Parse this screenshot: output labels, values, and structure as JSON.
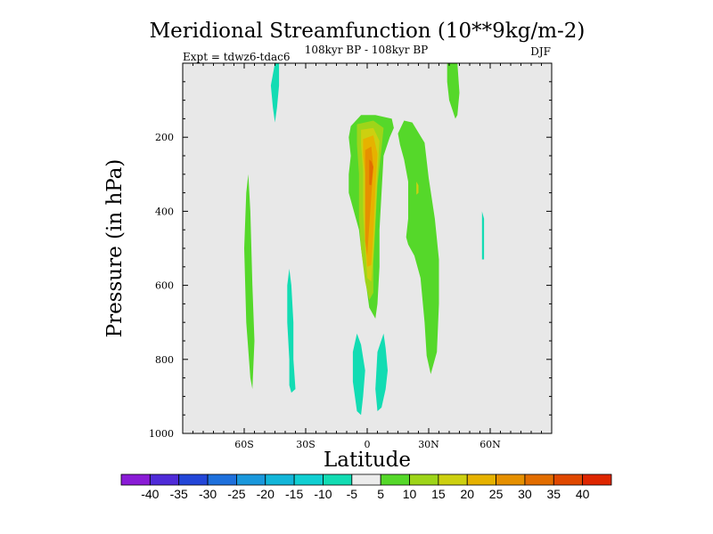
{
  "chart_data": {
    "type": "contour",
    "title": "Meridional Streamfunction (10**9kg/m-2)",
    "subtitle_center": "108kyr BP - 108kyr BP",
    "subtitle_left": "Expt = tdwz6-tdac6",
    "subtitle_right": "DJF",
    "xlabel": "Latitude",
    "ylabel": "Pressure (in hPa)",
    "xlim": [
      -90,
      90
    ],
    "ylim": [
      0,
      1000
    ],
    "x_ticks": [
      {
        "value": -60,
        "label": "60S"
      },
      {
        "value": -30,
        "label": "30S"
      },
      {
        "value": 0,
        "label": "0"
      },
      {
        "value": 30,
        "label": "30N"
      },
      {
        "value": 60,
        "label": "60N"
      }
    ],
    "y_ticks": [
      {
        "value": 200,
        "label": "200"
      },
      {
        "value": 400,
        "label": "400"
      },
      {
        "value": 600,
        "label": "600"
      },
      {
        "value": 800,
        "label": "800"
      },
      {
        "value": 1000,
        "label": "1000"
      }
    ],
    "background_color": "#e8e8e8",
    "colorbar": {
      "colors": [
        "#8a1cd6",
        "#4f2bd8",
        "#2346d8",
        "#1e70dc",
        "#1a98dc",
        "#13b6d9",
        "#11cfd2",
        "#12dcb3",
        "#ececec",
        "#55d82a",
        "#9ed519",
        "#cdd010",
        "#e6b200",
        "#e69000",
        "#e26d00",
        "#e04800",
        "#de2600"
      ],
      "labels": [
        "-40",
        "-35",
        "-30",
        "-25",
        "-20",
        "-15",
        "-10",
        "-5",
        "5",
        "10",
        "15",
        "20",
        "25",
        "30",
        "35",
        "40"
      ]
    },
    "regions": [
      {
        "level": "-10 to -5",
        "color": "#12dcb3",
        "points": [
          [
            -45,
            0
          ],
          [
            -43,
            0
          ],
          [
            -43,
            60
          ],
          [
            -44,
            120
          ],
          [
            -45,
            160
          ],
          [
            -46,
            120
          ],
          [
            -47,
            60
          ]
        ]
      },
      {
        "level": "-10 to -5",
        "color": "#12dcb3",
        "points": [
          [
            -38,
            555
          ],
          [
            -37,
            600
          ],
          [
            -36,
            700
          ],
          [
            -36,
            800
          ],
          [
            -35,
            880
          ],
          [
            -37,
            890
          ],
          [
            -38,
            870
          ],
          [
            -38,
            800
          ],
          [
            -39,
            700
          ],
          [
            -39,
            600
          ]
        ]
      },
      {
        "level": "-10 to -5",
        "color": "#12dcb3",
        "points": [
          [
            -5,
            730
          ],
          [
            -3,
            760
          ],
          [
            -1,
            830
          ],
          [
            -2,
            900
          ],
          [
            -3,
            950
          ],
          [
            -5,
            940
          ],
          [
            -7,
            860
          ],
          [
            -7,
            780
          ]
        ]
      },
      {
        "level": "-10 to -5",
        "color": "#12dcb3",
        "points": [
          [
            8,
            730
          ],
          [
            9,
            770
          ],
          [
            10,
            830
          ],
          [
            9,
            880
          ],
          [
            7,
            930
          ],
          [
            5,
            940
          ],
          [
            4,
            880
          ],
          [
            5,
            780
          ]
        ]
      },
      {
        "level": "-10 to -5",
        "color": "#12dcb3",
        "points": [
          [
            56,
            400
          ],
          [
            57,
            420
          ],
          [
            57,
            530
          ],
          [
            56,
            530
          ],
          [
            56,
            420
          ]
        ]
      },
      {
        "level": "5 to 10",
        "color": "#55d82a",
        "points": [
          [
            -58,
            300
          ],
          [
            -57,
            400
          ],
          [
            -56,
            600
          ],
          [
            -55,
            750
          ],
          [
            -56,
            880
          ],
          [
            -57,
            850
          ],
          [
            -59,
            700
          ],
          [
            -60,
            500
          ],
          [
            -59,
            350
          ]
        ]
      },
      {
        "level": "5 to 10",
        "color": "#55d82a",
        "points": [
          [
            39,
            0
          ],
          [
            44,
            0
          ],
          [
            45,
            80
          ],
          [
            44,
            140
          ],
          [
            43,
            150
          ],
          [
            40,
            100
          ],
          [
            39,
            50
          ]
        ]
      },
      {
        "level": "5 to 10",
        "color": "#55d82a",
        "points": [
          [
            -8,
            170
          ],
          [
            -3,
            140
          ],
          [
            4,
            140
          ],
          [
            12,
            150
          ],
          [
            13,
            175
          ],
          [
            11,
            200
          ],
          [
            8,
            250
          ],
          [
            7,
            350
          ],
          [
            6,
            450
          ],
          [
            6,
            550
          ],
          [
            5,
            650
          ],
          [
            4,
            690
          ],
          [
            1,
            660
          ],
          [
            -1,
            580
          ],
          [
            -3,
            500
          ],
          [
            -4,
            450
          ],
          [
            -6,
            410
          ],
          [
            -9,
            350
          ],
          [
            -9,
            300
          ],
          [
            -8,
            250
          ],
          [
            -9,
            200
          ]
        ]
      },
      {
        "level": "5 to 10",
        "color": "#55d82a",
        "points": [
          [
            15,
            190
          ],
          [
            18,
            155
          ],
          [
            22,
            160
          ],
          [
            28,
            215
          ],
          [
            30,
            310
          ],
          [
            33,
            420
          ],
          [
            35,
            530
          ],
          [
            35,
            650
          ],
          [
            34,
            780
          ],
          [
            31,
            840
          ],
          [
            29,
            790
          ],
          [
            28,
            700
          ],
          [
            26,
            580
          ],
          [
            23,
            520
          ],
          [
            20,
            490
          ],
          [
            19,
            470
          ],
          [
            20,
            420
          ],
          [
            20,
            320
          ],
          [
            18,
            260
          ],
          [
            16,
            220
          ]
        ]
      },
      {
        "level": "10 to 15",
        "color": "#9ed519",
        "points": [
          [
            -5,
            165
          ],
          [
            3,
            155
          ],
          [
            8,
            175
          ],
          [
            7,
            230
          ],
          [
            5,
            330
          ],
          [
            4,
            440
          ],
          [
            3,
            540
          ],
          [
            3,
            620
          ],
          [
            1,
            640
          ],
          [
            -1,
            590
          ],
          [
            -3,
            500
          ],
          [
            -4,
            420
          ],
          [
            -4,
            300
          ],
          [
            -5,
            220
          ]
        ]
      },
      {
        "level": "15 to 20",
        "color": "#cdd010",
        "points": [
          [
            24,
            320
          ],
          [
            25,
            330
          ],
          [
            25,
            350
          ],
          [
            24,
            355
          ]
        ]
      },
      {
        "level": "15 to 20",
        "color": "#cdd010",
        "points": [
          [
            -3,
            180
          ],
          [
            3,
            175
          ],
          [
            6,
            210
          ],
          [
            5,
            300
          ],
          [
            4,
            420
          ],
          [
            3,
            520
          ],
          [
            2,
            590
          ],
          [
            0,
            580
          ],
          [
            -1,
            500
          ],
          [
            -2,
            400
          ],
          [
            -2,
            290
          ],
          [
            -3,
            220
          ]
        ]
      },
      {
        "level": "20 to 25",
        "color": "#e6b200",
        "points": [
          [
            -2,
            205
          ],
          [
            3,
            195
          ],
          [
            5,
            245
          ],
          [
            4,
            340
          ],
          [
            3,
            460
          ],
          [
            2,
            545
          ],
          [
            0,
            550
          ],
          [
            -1,
            470
          ],
          [
            -1,
            380
          ],
          [
            -1,
            300
          ],
          [
            -2,
            250
          ]
        ]
      },
      {
        "level": "25 to 30",
        "color": "#e69000",
        "points": [
          [
            -1,
            235
          ],
          [
            2,
            225
          ],
          [
            3,
            280
          ],
          [
            2,
            360
          ],
          [
            1,
            440
          ],
          [
            0,
            520
          ],
          [
            -1,
            480
          ],
          [
            -1,
            380
          ],
          [
            -1,
            300
          ]
        ]
      },
      {
        "level": "30 to 35",
        "color": "#e26d00",
        "points": [
          [
            1,
            260
          ],
          [
            2,
            265
          ],
          [
            3,
            280
          ],
          [
            2,
            330
          ],
          [
            1,
            328
          ],
          [
            1,
            295
          ]
        ]
      }
    ]
  }
}
